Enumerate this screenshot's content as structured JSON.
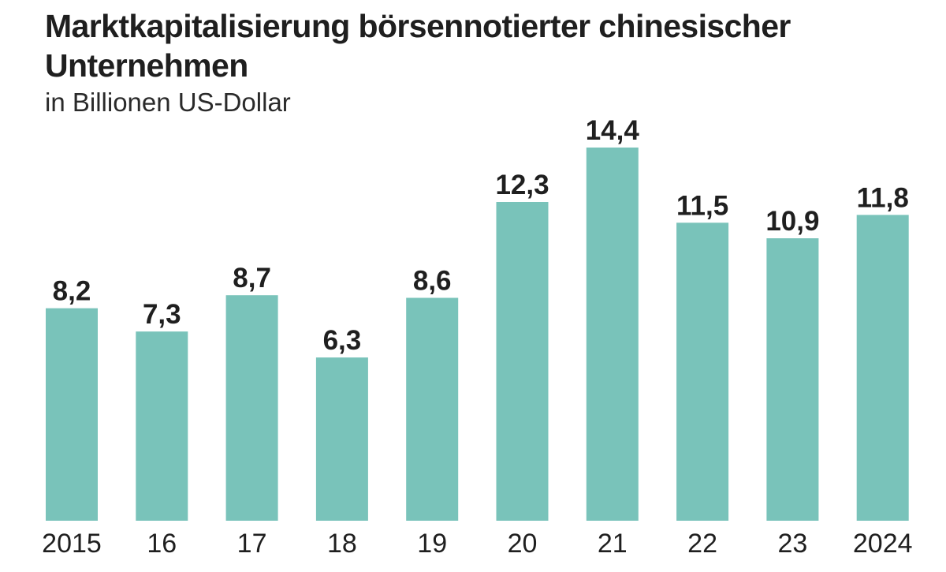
{
  "chart_data": {
    "type": "bar",
    "title": "Marktkapitalisierung börsennotierter chinesischer Unternehmen",
    "subtitle": "in Billionen US-Dollar",
    "categories": [
      "2015",
      "16",
      "17",
      "18",
      "19",
      "20",
      "21",
      "22",
      "23",
      "2024"
    ],
    "series": [
      {
        "name": "Marktkapitalisierung",
        "values": [
          8.2,
          7.3,
          8.7,
          6.3,
          8.6,
          12.3,
          14.4,
          11.5,
          10.9,
          11.8
        ],
        "labels": [
          "8,2",
          "7,3",
          "8,7",
          "6,3",
          "8,6",
          "12,3",
          "14,4",
          "11,5",
          "10,9",
          "11,8"
        ]
      }
    ],
    "xlabel": "",
    "ylabel": "",
    "ylim": [
      0,
      14.4
    ],
    "grid": false,
    "legend": "none",
    "bar_color": "#79c3ba"
  }
}
